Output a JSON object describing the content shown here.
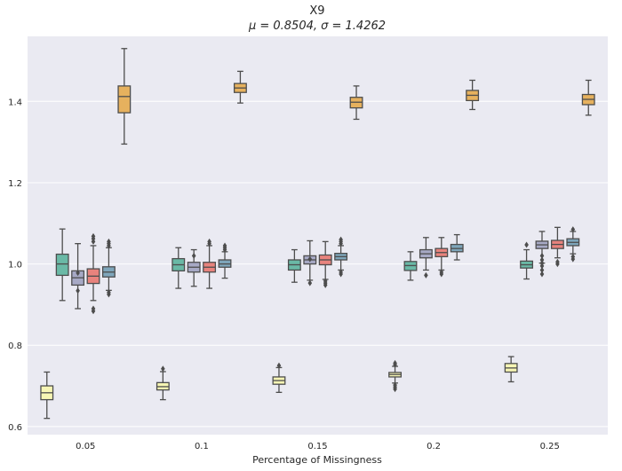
{
  "chart_data": {
    "type": "box",
    "title": "X9",
    "subtitle": "μ = 0.8504, σ = 1.4262",
    "xlabel": "Percentage of Missingness",
    "ylabel": "",
    "categories": [
      "0.05",
      "0.1",
      "0.15",
      "0.2",
      "0.25"
    ],
    "ylim": [
      0.58,
      1.56
    ],
    "yticks": [
      0.6,
      0.8,
      1.0,
      1.2,
      1.4
    ],
    "ytick_labels": [
      "0.6",
      "0.8",
      "1.0",
      "1.2",
      "1.4"
    ],
    "grid": true,
    "series": [
      {
        "color": "#f6f5b4",
        "boxes": [
          {
            "whislo": 0.62,
            "q1": 0.666,
            "med": 0.683,
            "q3": 0.7,
            "whishi": 0.734,
            "fliers": []
          },
          {
            "whislo": 0.666,
            "q1": 0.69,
            "med": 0.698,
            "q3": 0.708,
            "whishi": 0.735,
            "fliers": [
              0.742
            ]
          },
          {
            "whislo": 0.684,
            "q1": 0.704,
            "med": 0.713,
            "q3": 0.722,
            "whishi": 0.745,
            "fliers": [
              0.75
            ]
          },
          {
            "whislo": 0.707,
            "q1": 0.722,
            "med": 0.728,
            "q3": 0.733,
            "whishi": 0.748,
            "fliers": [
              0.692,
              0.697,
              0.702,
              0.752,
              0.756
            ]
          },
          {
            "whislo": 0.71,
            "q1": 0.734,
            "med": 0.744,
            "q3": 0.755,
            "whishi": 0.772,
            "fliers": []
          }
        ]
      },
      {
        "color": "#6ab9a6",
        "boxes": [
          {
            "whislo": 0.91,
            "q1": 0.972,
            "med": 1.0,
            "q3": 1.024,
            "whishi": 1.086,
            "fliers": []
          },
          {
            "whislo": 0.94,
            "q1": 0.983,
            "med": 0.998,
            "q3": 1.013,
            "whishi": 1.04,
            "fliers": []
          },
          {
            "whislo": 0.955,
            "q1": 0.985,
            "med": 0.998,
            "q3": 1.01,
            "whishi": 1.035,
            "fliers": []
          },
          {
            "whislo": 0.96,
            "q1": 0.984,
            "med": 0.996,
            "q3": 1.006,
            "whishi": 1.03,
            "fliers": []
          },
          {
            "whislo": 0.963,
            "q1": 0.99,
            "med": 0.998,
            "q3": 1.007,
            "whishi": 1.035,
            "fliers": [
              1.047
            ]
          }
        ]
      },
      {
        "color": "#a7a9c5",
        "boxes": [
          {
            "whislo": 0.89,
            "q1": 0.948,
            "med": 0.966,
            "q3": 0.983,
            "whishi": 1.05,
            "fliers": [
              0.934,
              0.978
            ]
          },
          {
            "whislo": 0.945,
            "q1": 0.98,
            "med": 0.992,
            "q3": 1.004,
            "whishi": 1.035,
            "fliers": [
              1.02
            ]
          },
          {
            "whislo": 0.96,
            "q1": 1.0,
            "med": 1.01,
            "q3": 1.02,
            "whishi": 1.057,
            "fliers": [
              0.953,
              1.012
            ]
          },
          {
            "whislo": 0.985,
            "q1": 1.015,
            "med": 1.025,
            "q3": 1.035,
            "whishi": 1.065,
            "fliers": [
              0.972
            ]
          },
          {
            "whislo": 1.002,
            "q1": 1.038,
            "med": 1.047,
            "q3": 1.056,
            "whishi": 1.08,
            "fliers": [
              0.975,
              0.985,
              0.995,
              1.002,
              1.01,
              1.02
            ]
          }
        ]
      },
      {
        "color": "#e8837d",
        "boxes": [
          {
            "whislo": 0.91,
            "q1": 0.952,
            "med": 0.97,
            "q3": 0.988,
            "whishi": 1.045,
            "fliers": [
              0.884,
              0.89,
              1.055,
              1.062,
              1.068
            ]
          },
          {
            "whislo": 0.94,
            "q1": 0.98,
            "med": 0.992,
            "q3": 1.004,
            "whishi": 1.045,
            "fliers": [
              1.05,
              1.055
            ]
          },
          {
            "whislo": 0.962,
            "q1": 0.998,
            "med": 1.01,
            "q3": 1.022,
            "whishi": 1.055,
            "fliers": [
              0.948,
              0.953,
              0.958
            ]
          },
          {
            "whislo": 0.985,
            "q1": 1.018,
            "med": 1.028,
            "q3": 1.038,
            "whishi": 1.065,
            "fliers": [
              0.975,
              0.98
            ]
          },
          {
            "whislo": 1.015,
            "q1": 1.038,
            "med": 1.048,
            "q3": 1.058,
            "whishi": 1.09,
            "fliers": [
              1.0,
              1.005
            ]
          }
        ]
      },
      {
        "color": "#7ea6bb",
        "boxes": [
          {
            "whislo": 0.935,
            "q1": 0.968,
            "med": 0.98,
            "q3": 0.993,
            "whishi": 1.04,
            "fliers": [
              0.925,
              0.93,
              1.045,
              1.05,
              1.055
            ]
          },
          {
            "whislo": 0.965,
            "q1": 0.992,
            "med": 1.0,
            "q3": 1.01,
            "whishi": 1.03,
            "fliers": [
              1.035,
              1.04,
              1.045
            ]
          },
          {
            "whislo": 0.985,
            "q1": 1.01,
            "med": 1.018,
            "q3": 1.026,
            "whishi": 1.045,
            "fliers": [
              0.975,
              0.98,
              1.05,
              1.055,
              1.06
            ]
          },
          {
            "whislo": 1.01,
            "q1": 1.03,
            "med": 1.038,
            "q3": 1.048,
            "whishi": 1.072,
            "fliers": []
          },
          {
            "whislo": 1.025,
            "q1": 1.045,
            "med": 1.053,
            "q3": 1.062,
            "whishi": 1.08,
            "fliers": [
              1.012,
              1.018,
              1.085
            ]
          }
        ]
      },
      {
        "color": "#e6b15e",
        "boxes": [
          {
            "whislo": 1.295,
            "q1": 1.372,
            "med": 1.412,
            "q3": 1.438,
            "whishi": 1.53,
            "fliers": []
          },
          {
            "whislo": 1.396,
            "q1": 1.422,
            "med": 1.433,
            "q3": 1.444,
            "whishi": 1.474,
            "fliers": []
          },
          {
            "whislo": 1.356,
            "q1": 1.384,
            "med": 1.398,
            "q3": 1.41,
            "whishi": 1.438,
            "fliers": []
          },
          {
            "whislo": 1.38,
            "q1": 1.402,
            "med": 1.415,
            "q3": 1.427,
            "whishi": 1.452,
            "fliers": []
          },
          {
            "whislo": 1.366,
            "q1": 1.392,
            "med": 1.405,
            "q3": 1.417,
            "whishi": 1.452,
            "fliers": []
          }
        ]
      }
    ]
  }
}
